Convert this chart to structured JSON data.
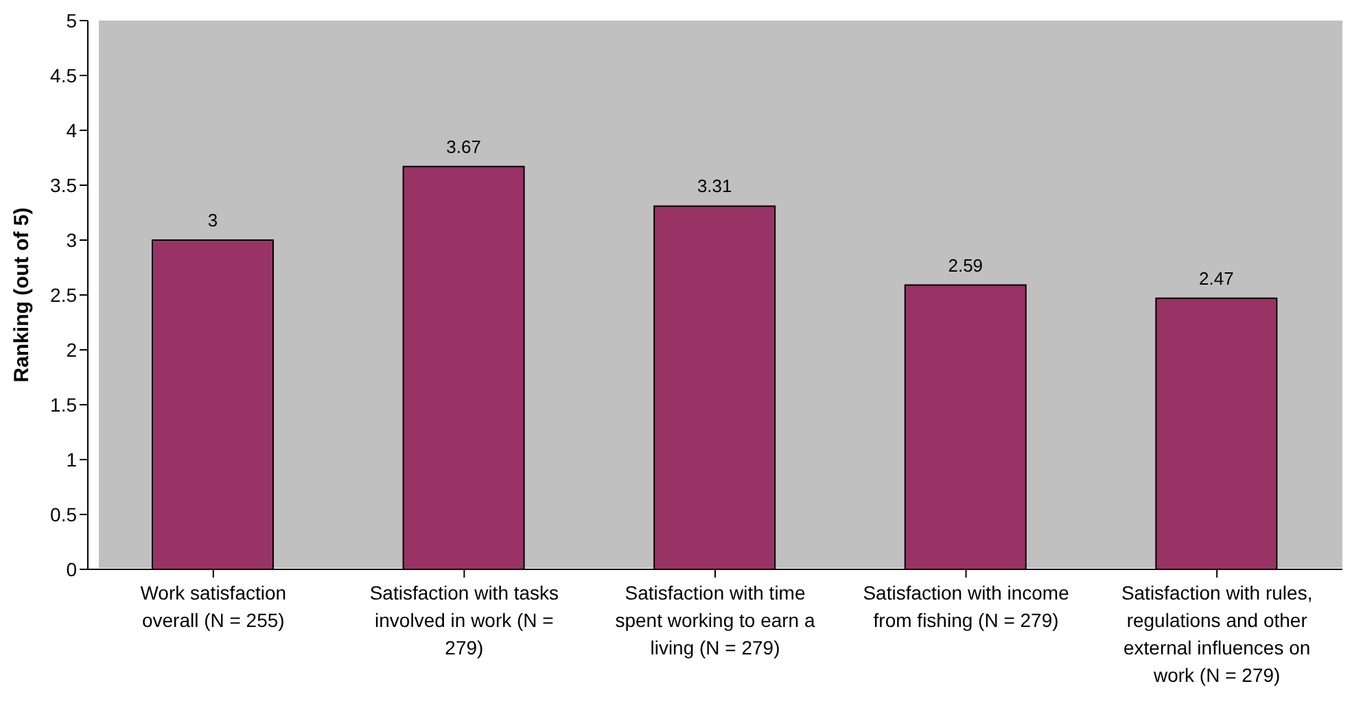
{
  "chart_data": {
    "type": "bar",
    "ylabel": "Ranking (out of 5)",
    "categories": [
      "Work satisfaction overall (N = 255)",
      "Satisfaction with tasks involved in work (N = 279)",
      "Satisfaction with time spent working to earn a living (N = 279)",
      "Satisfaction with income from fishing (N = 279)",
      "Satisfaction with rules, regulations and other external influences on work (N = 279)"
    ],
    "values": [
      3,
      3.67,
      3.31,
      2.59,
      2.47
    ],
    "color": "#993366",
    "ylim": [
      0,
      5
    ],
    "yticks": [
      0,
      0.5,
      1,
      1.5,
      2,
      2.5,
      3,
      3.5,
      4,
      4.5,
      5
    ],
    "data_labels": true
  }
}
